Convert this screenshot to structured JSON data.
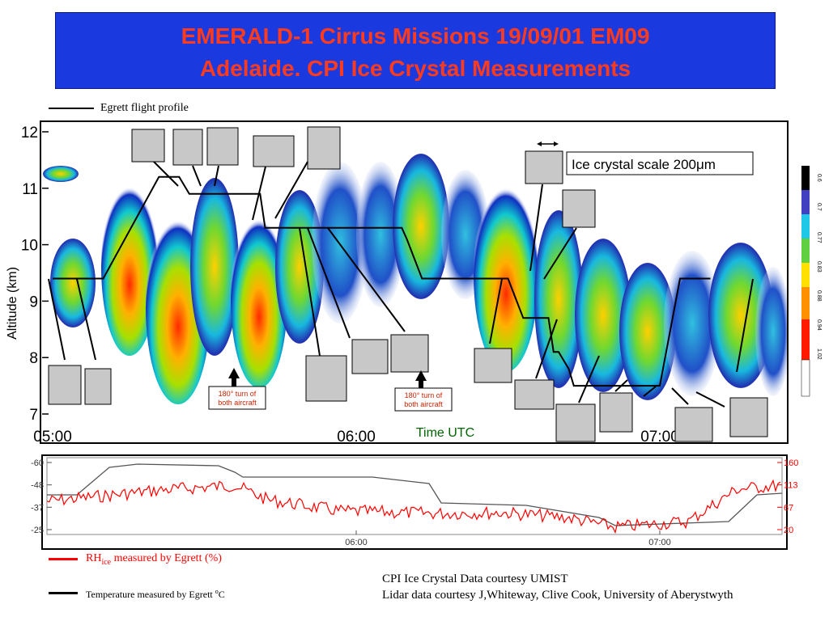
{
  "title": {
    "line1": "EMERALD-1 Cirrus Missions 19/09/01 EM09",
    "line2": "Adelaide. CPI Ice Crystal Measurements"
  },
  "colors": {
    "title_bg": "#1a3ae0",
    "title_text": "#ff3b1e",
    "rh_line": "#ff0000",
    "temp_line": "#000000",
    "flight_profile": "#000000"
  },
  "legend_top": {
    "flight_profile_label": "Egrett flight profile"
  },
  "annotations": {
    "scale_label": "Ice crystal scale 200μm",
    "turn1": {
      "line1": "180° turn of",
      "line2": "both aircraft"
    },
    "turn2": {
      "line1": "180° turn of",
      "line2": "both aircraft"
    },
    "time_utc_label": "Time UTC"
  },
  "bottom": {
    "rh_label": "RH",
    "rh_sub": "ice",
    "rh_suffix": " measured by Egrett (%)",
    "temp_label": "Temperature measured by Egrett ",
    "temp_sup": "o",
    "temp_unit": "C"
  },
  "credits": {
    "line1": "CPI Ice Crystal Data courtesy UMIST",
    "line2": "Lidar data courtesy J,Whiteway, Clive Cook, University of Aberystwyth"
  },
  "chart_data": [
    {
      "type": "line",
      "chart": "lidar-altitude",
      "ylabel": "Altitude (km)",
      "yticks": [
        "12",
        "11",
        "10",
        "9",
        "8",
        "7"
      ],
      "xticks": [
        "05:00",
        "06:00",
        "07:00"
      ],
      "ylim": [
        7,
        12
      ],
      "series": [
        {
          "name": "Egrett flight profile",
          "x": [
            "05:00",
            "05:02",
            "05:10",
            "05:21",
            "05:25",
            "05:27",
            "05:37",
            "05:41",
            "05:42",
            "05:59",
            "06:09",
            "06:10",
            "06:13",
            "06:29",
            "06:30",
            "06:33",
            "06:34",
            "06:38",
            "06:39",
            "06:40",
            "06:42",
            "06:43",
            "06:52",
            "06:54",
            "06:55",
            "07:00",
            "07:04",
            "07:06",
            "07:10"
          ],
          "y": [
            9.4,
            9.4,
            9.4,
            11.2,
            11.2,
            10.9,
            10.9,
            10.9,
            10.3,
            10.3,
            10.3,
            10.1,
            9.4,
            9.4,
            9.4,
            8.7,
            8.7,
            8.7,
            8.1,
            8.1,
            7.8,
            7.5,
            7.5,
            7.5,
            7.5,
            7.5,
            9.4,
            9.4,
            9.4
          ]
        }
      ],
      "colorbar_labels": [
        "0.6",
        "0.7",
        "0.77",
        "0.83",
        "0.88",
        "0.94",
        "1.02"
      ]
    },
    {
      "type": "line",
      "chart": "egrett-timeseries",
      "xticks": [
        "06:00",
        "07:00"
      ],
      "left_yticks": [
        "-60",
        "-48",
        "-37",
        "-25"
      ],
      "right_yticks": [
        "160",
        "113",
        "67",
        "20"
      ],
      "series": [
        {
          "name": "Temperature measured by Egrett °C"
        },
        {
          "name": "RHice measured by Egrett (%)"
        }
      ]
    }
  ]
}
